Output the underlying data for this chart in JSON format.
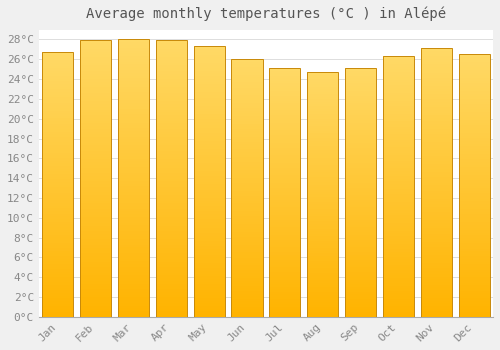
{
  "title": "Average monthly temperatures (°C ) in Alépé",
  "months": [
    "Jan",
    "Feb",
    "Mar",
    "Apr",
    "May",
    "Jun",
    "Jul",
    "Aug",
    "Sep",
    "Oct",
    "Nov",
    "Dec"
  ],
  "values": [
    26.7,
    27.9,
    28.0,
    27.9,
    27.3,
    26.0,
    25.1,
    24.7,
    25.1,
    26.3,
    27.1,
    26.5
  ],
  "bar_color_bottom": "#FFB300",
  "bar_color_top": "#FFD966",
  "bar_edge_color": "#C8890A",
  "ylim": [
    0,
    29
  ],
  "ytick_step": 2,
  "background_color": "#f0f0f0",
  "plot_bg_color": "#ffffff",
  "grid_color": "#dddddd",
  "title_fontsize": 10,
  "tick_fontsize": 8,
  "tick_label_color": "#888888",
  "title_color": "#555555",
  "bar_width": 0.82
}
